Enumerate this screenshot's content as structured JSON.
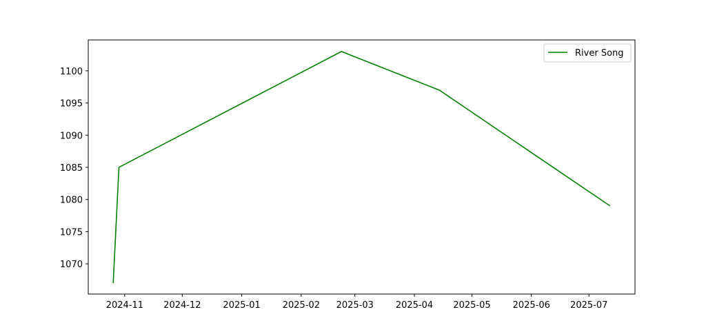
{
  "chart_data": {
    "type": "line",
    "title": "",
    "xlabel": "",
    "ylabel": "",
    "x_type": "date",
    "xlim": [
      "2024-10-13",
      "2025-07-25"
    ],
    "ylim": [
      1065.3,
      1104.8
    ],
    "x_ticks": [
      "2024-11-01",
      "2024-12-01",
      "2025-01-01",
      "2025-02-01",
      "2025-03-01",
      "2025-04-01",
      "2025-05-01",
      "2025-06-01",
      "2025-07-01"
    ],
    "x_tick_labels": [
      "2024-11",
      "2024-12",
      "2025-01",
      "2025-02",
      "2025-03",
      "2025-04",
      "2025-05",
      "2025-06",
      "2025-07"
    ],
    "y_ticks": [
      1070,
      1075,
      1080,
      1085,
      1090,
      1095,
      1100
    ],
    "y_tick_labels": [
      "1070",
      "1075",
      "1080",
      "1085",
      "1090",
      "1095",
      "1100"
    ],
    "grid": false,
    "legend_position": "top-right",
    "series": [
      {
        "name": "River Song",
        "color": "#008000",
        "x": [
          "2024-10-26",
          "2024-10-29",
          "2025-02-22",
          "2025-04-14",
          "2025-07-12"
        ],
        "y": [
          1067,
          1085,
          1103,
          1097,
          1079
        ]
      }
    ]
  }
}
